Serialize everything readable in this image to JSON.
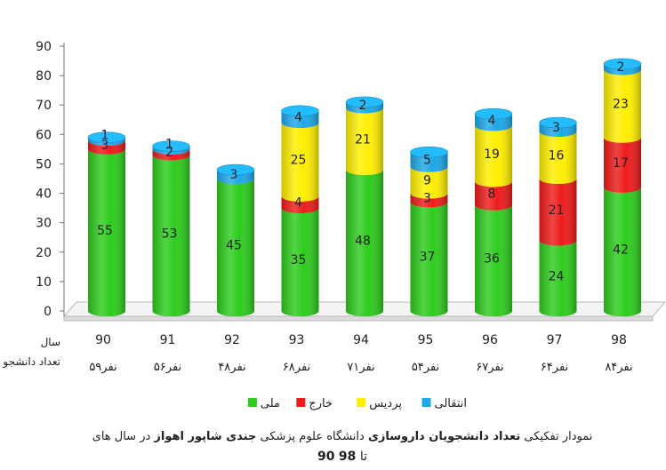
{
  "chart_data": {
    "type": "bar",
    "stacked": true,
    "categories": [
      "90",
      "91",
      "92",
      "93",
      "94",
      "95",
      "96",
      "97",
      "98"
    ],
    "totals": [
      "۵۹نفر",
      "۵۶نفر",
      "۴۸نفر",
      "۶۸نفر",
      "۷۱نفر",
      "۵۴نفر",
      "۶۷نفر",
      "۶۴نفر",
      "۸۴نفر"
    ],
    "row_labels": {
      "year": "سال",
      "count": "تعداد دانشجو"
    },
    "series": [
      {
        "name": "ملی",
        "color": "#2ecc1e",
        "values": [
          55,
          53,
          45,
          35,
          48,
          37,
          36,
          24,
          42
        ]
      },
      {
        "name": "خارج",
        "color": "#ee1c1c",
        "values": [
          3,
          2,
          0,
          4,
          0,
          3,
          8,
          21,
          17
        ]
      },
      {
        "name": "پردیس",
        "color": "#ffee00",
        "values": [
          0,
          0,
          0,
          25,
          21,
          9,
          19,
          16,
          23
        ]
      },
      {
        "name": "انتقالی",
        "color": "#1ea8e8",
        "values": [
          1,
          1,
          3,
          4,
          2,
          5,
          4,
          3,
          2
        ]
      }
    ],
    "ylim": [
      0,
      90
    ],
    "yticks": [
      0,
      10,
      20,
      30,
      40,
      50,
      60,
      70,
      80,
      90
    ],
    "grid": false,
    "legend_position": "bottom"
  },
  "caption": {
    "line1_pre": "نمودار تفکیکی ",
    "line1_bold1": "تعداد دانشجویان داروسازی",
    "line1_mid": " دانشگاه علوم پزشکی ",
    "line1_bold2": "جندی شاپور اهواز",
    "line1_post": " در سال های",
    "line2_a": "90",
    "line2_to": " تا ",
    "line2_b": "98"
  }
}
